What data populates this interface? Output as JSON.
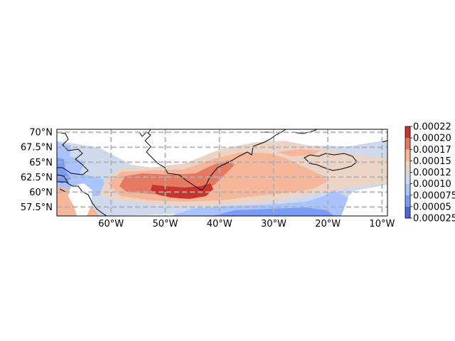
{
  "map": {
    "projection": "PlateCarree",
    "extent": {
      "lon_min": -70,
      "lon_max": -9,
      "lat_min": 56,
      "lat_max": 70.5
    },
    "lat_ticks": [
      {
        "value": 70,
        "label": "70°N"
      },
      {
        "value": 67.5,
        "label": "67.5°N"
      },
      {
        "value": 65,
        "label": "65°N"
      },
      {
        "value": 62.5,
        "label": "62.5°N"
      },
      {
        "value": 60,
        "label": "60°N"
      },
      {
        "value": 57.5,
        "label": "57.5°N"
      }
    ],
    "lon_ticks": [
      {
        "value": -60,
        "label": "60°W"
      },
      {
        "value": -50,
        "label": "50°W"
      },
      {
        "value": -40,
        "label": "40°W"
      },
      {
        "value": -30,
        "label": "30°W"
      },
      {
        "value": -20,
        "label": "20°W"
      },
      {
        "value": -10,
        "label": "10°W"
      }
    ],
    "gridlines": true,
    "gridline_style": "dashed",
    "coastlines": true,
    "colormap": "coolwarm"
  },
  "colorbar": {
    "placement": "right",
    "levels": [
      {
        "value": 2.5e-05,
        "label": "0.000025",
        "color": "#4e66d6"
      },
      {
        "value": 5e-05,
        "label": "0.00005",
        "color": "#7a9cf4"
      },
      {
        "value": 7.5e-05,
        "label": "0.000075",
        "color": "#a8c3fd"
      },
      {
        "value": 0.0001,
        "label": "0.00010",
        "color": "#cdd9ec"
      },
      {
        "value": 0.000125,
        "label": "0.00012",
        "color": "#ebd3c6"
      },
      {
        "value": 0.00015,
        "label": "0.00015",
        "color": "#f6b69a"
      },
      {
        "value": 0.000175,
        "label": "0.00017",
        "color": "#e57a62"
      },
      {
        "value": 0.0002,
        "label": "0.00020",
        "color": "#c8342e"
      },
      {
        "value": 0.000225,
        "label": "0.00022"
      }
    ]
  },
  "chart_data": {
    "type": "heatmap",
    "title": "",
    "xlabel": "",
    "ylabel": "",
    "xlim": [
      -70,
      -9
    ],
    "ylim": [
      56,
      70.5
    ],
    "value_range": [
      2.5e-05,
      0.000225
    ],
    "contour_regions": [
      {
        "level": "0.000100–0.000125",
        "description": "broad background band from 70°W to 10°W, 55°N–66°N"
      },
      {
        "level": "0.000125–0.000150",
        "description": "band south of Greenland extending east to ~20°W"
      },
      {
        "level": "0.000150–0.000175",
        "description": "core band ~62°W–25°W, 58°N–63°N"
      },
      {
        "level": "0.000175–0.000200",
        "description": "band around southern Greenland tip, ~57°W–38°W"
      },
      {
        "level": "0.000200–0.000225",
        "description": "maximum just south of Greenland, ~52°W–42°W, ~59°N–60.5°N"
      },
      {
        "level": "0.000025–0.000100",
        "description": "low values along Labrador coast near 70°W and south edge 48°W–22°W at 56°N"
      }
    ]
  },
  "colors": {
    "gridline": "#b0b0b0",
    "coastline": "#000000",
    "frame": "#000000"
  }
}
